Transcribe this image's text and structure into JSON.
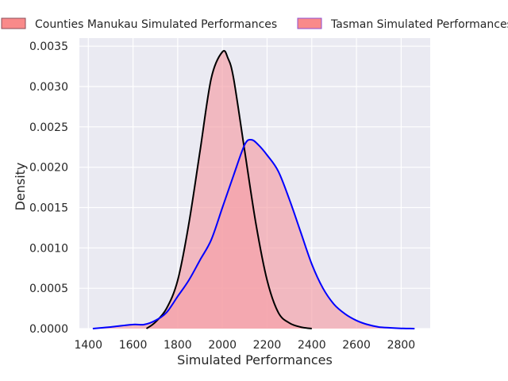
{
  "chart_data": {
    "type": "area",
    "xlabel": "Simulated Performances",
    "ylabel": "Density",
    "xlim": [
      1360,
      2930
    ],
    "ylim": [
      0,
      0.0036
    ],
    "x_ticks": [
      1400,
      1600,
      1800,
      2000,
      2200,
      2400,
      2600,
      2800
    ],
    "y_ticks": [
      0.0,
      0.0005,
      0.001,
      0.0015,
      0.002,
      0.0025,
      0.003,
      0.0035
    ],
    "y_tick_labels": [
      "0.0000",
      "0.0005",
      "0.0010",
      "0.0015",
      "0.0020",
      "0.0025",
      "0.0030",
      "0.0035"
    ],
    "grid": true,
    "legend_position": "top",
    "series": [
      {
        "name": "Counties Manukau Simulated Performances",
        "line_color": "#000000",
        "fill_color": "#f4a0a8",
        "x": [
          1660,
          1700,
          1750,
          1800,
          1850,
          1900,
          1950,
          2000,
          2025,
          2050,
          2100,
          2150,
          2200,
          2250,
          2300,
          2350,
          2400
        ],
        "y": [
          0.0,
          8e-05,
          0.00025,
          0.0006,
          0.0013,
          0.0022,
          0.0031,
          0.00343,
          0.00335,
          0.0031,
          0.0022,
          0.0013,
          0.0006,
          0.0002,
          7e-05,
          2e-05,
          0.0
        ]
      },
      {
        "name": "Tasman Simulated Performances",
        "line_color": "#0000ff",
        "fill_color": "#f4a0a8",
        "x": [
          1420,
          1500,
          1600,
          1650,
          1700,
          1750,
          1800,
          1850,
          1900,
          1950,
          2000,
          2050,
          2100,
          2130,
          2160,
          2200,
          2250,
          2300,
          2350,
          2400,
          2450,
          2500,
          2550,
          2600,
          2650,
          2700,
          2750,
          2800,
          2860
        ],
        "y": [
          0.0,
          2e-05,
          5e-05,
          5e-05,
          0.0001,
          0.0002,
          0.0004,
          0.0006,
          0.00085,
          0.0011,
          0.0015,
          0.0019,
          0.00228,
          0.00234,
          0.00228,
          0.00215,
          0.00195,
          0.0016,
          0.0012,
          0.0008,
          0.0005,
          0.0003,
          0.00018,
          0.0001,
          5e-05,
          2e-05,
          1e-05,
          3e-06,
          0.0
        ]
      }
    ]
  }
}
